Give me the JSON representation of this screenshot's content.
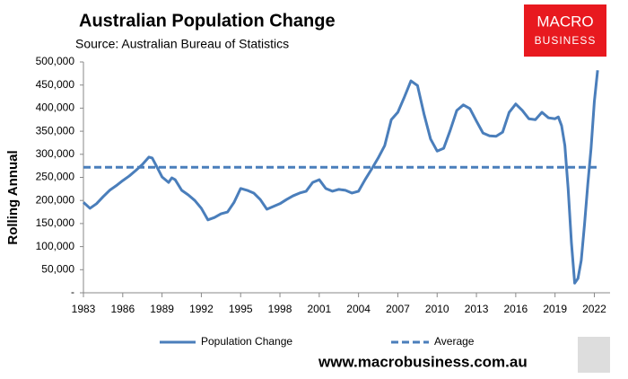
{
  "chart_data": {
    "type": "line",
    "title": "Australian Population Change",
    "subtitle": "Source: Australian Bureau of Statistics",
    "y_label": "Rolling Annual",
    "brand": {
      "line1": "MACRO",
      "line2": "BUSINESS"
    },
    "website": "www.macrobusiness.com.au",
    "x": [
      1983,
      1983.5,
      1984,
      1984.5,
      1985,
      1985.5,
      1986,
      1986.5,
      1987,
      1987.5,
      1988,
      1988.25,
      1988.75,
      1989,
      1989.5,
      1989.75,
      1990,
      1990.5,
      1991,
      1991.5,
      1992,
      1992.5,
      1993,
      1993.5,
      1994,
      1994.5,
      1995,
      1995.5,
      1996,
      1996.5,
      1997,
      1997.5,
      1998,
      1998.5,
      1999,
      1999.5,
      2000,
      2000.5,
      2001,
      2001.5,
      2002,
      2002.5,
      2003,
      2003.5,
      2004,
      2004.5,
      2005,
      2005.5,
      2006,
      2006.5,
      2007,
      2007.5,
      2008,
      2008.5,
      2009,
      2009.5,
      2010,
      2010.5,
      2011,
      2011.5,
      2012,
      2012.5,
      2013,
      2013.5,
      2014,
      2014.5,
      2015,
      2015.5,
      2016,
      2016.5,
      2017,
      2017.5,
      2018,
      2018.5,
      2019,
      2019.25,
      2019.5,
      2019.75,
      2020,
      2020.25,
      2020.5,
      2020.75,
      2021,
      2021.25,
      2021.5,
      2021.75,
      2022,
      2022.25
    ],
    "series": [
      {
        "name": "Population Change",
        "color": "#4a7ebb",
        "values": [
          196000,
          183000,
          193000,
          208000,
          222000,
          232000,
          243000,
          253000,
          265000,
          278000,
          294000,
          292000,
          265000,
          251000,
          239000,
          249000,
          245000,
          222000,
          212000,
          200000,
          183000,
          158000,
          163000,
          171000,
          175000,
          196000,
          226000,
          222000,
          216000,
          202000,
          181000,
          187000,
          193000,
          202000,
          210000,
          216000,
          220000,
          239000,
          245000,
          226000,
          220000,
          224000,
          222000,
          216000,
          220000,
          245000,
          268000,
          292000,
          319000,
          375000,
          391000,
          424000,
          459000,
          449000,
          387000,
          333000,
          307000,
          313000,
          352000,
          395000,
          407000,
          399000,
          372000,
          346000,
          340000,
          339000,
          348000,
          391000,
          409000,
          395000,
          377000,
          375000,
          391000,
          379000,
          377000,
          381000,
          362000,
          319000,
          226000,
          109000,
          21000,
          31000,
          70000,
          148000,
          235000,
          313000,
          414000,
          482000
        ]
      }
    ],
    "average": {
      "name": "Average",
      "color": "#4a7ebb",
      "value": 272000
    },
    "xlim": [
      1983,
      2023.2
    ],
    "xticks": [
      1983,
      1986,
      1989,
      1992,
      1995,
      1998,
      2001,
      2004,
      2007,
      2010,
      2013,
      2016,
      2019,
      2022
    ],
    "ylim": [
      0,
      500000
    ],
    "yticks": [
      {
        "value": 0,
        "label": "-"
      },
      {
        "value": 50000,
        "label": "50,000"
      },
      {
        "value": 100000,
        "label": "100,000"
      },
      {
        "value": 150000,
        "label": "150,000"
      },
      {
        "value": 200000,
        "label": "200,000"
      },
      {
        "value": 250000,
        "label": "250,000"
      },
      {
        "value": 300000,
        "label": "300,000"
      },
      {
        "value": 350000,
        "label": "350,000"
      },
      {
        "value": 400000,
        "label": "400,000"
      },
      {
        "value": 450000,
        "label": "450,000"
      },
      {
        "value": 500000,
        "label": "500,000"
      }
    ],
    "grid": false
  }
}
